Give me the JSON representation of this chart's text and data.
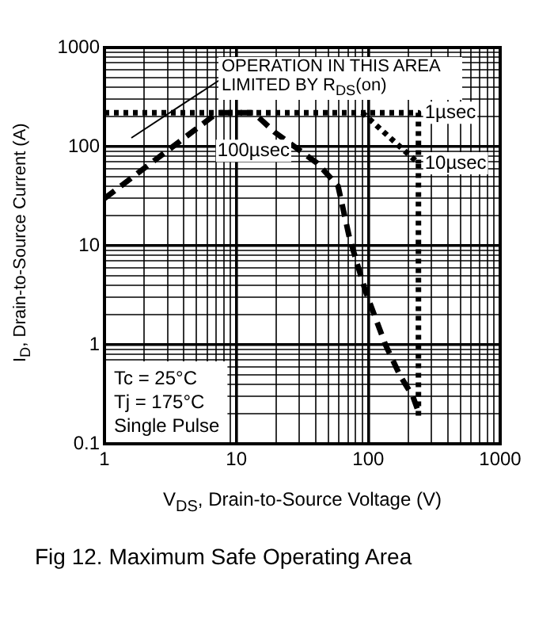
{
  "chart_data": {
    "type": "line",
    "title": "Fig 12.  Maximum Safe Operating Area",
    "xlabel": "V$_{DS}$, Drain-to-Source Voltage (V)",
    "ylabel": "I$_{D}$, Drain-to-Source Current (A)",
    "annotations": [
      "OPERATION IN THIS AREA LIMITED BY R$_{DS}$(on)",
      "Tc = 25°C",
      "Tj = 175°C",
      "Single Pulse"
    ],
    "log": "xy",
    "grid": true,
    "legend": false,
    "marker": "none",
    "xlim": [
      1,
      1000
    ],
    "xticks": [
      1,
      {
        "value": 2,
        "label": null
      },
      {
        "value": 3,
        "label": null
      },
      {
        "value": 4,
        "label": null
      },
      {
        "value": 5,
        "label": null
      },
      {
        "value": 6,
        "label": null
      },
      {
        "value": 7,
        "label": null
      },
      {
        "value": 8,
        "label": null
      },
      {
        "value": 9,
        "label": null
      },
      10,
      {
        "value": 20,
        "label": null
      },
      {
        "value": 30,
        "label": null
      },
      {
        "value": 40,
        "label": null
      },
      {
        "value": 50,
        "label": null
      },
      {
        "value": 60,
        "label": null
      },
      {
        "value": 70,
        "label": null
      },
      {
        "value": 80,
        "label": null
      },
      {
        "value": 90,
        "label": null
      },
      100,
      {
        "value": 200,
        "label": null
      },
      {
        "value": 300,
        "label": null
      },
      {
        "value": 400,
        "label": null
      },
      {
        "value": 500,
        "label": null
      },
      {
        "value": 600,
        "label": null
      },
      {
        "value": 700,
        "label": null
      },
      {
        "value": 800,
        "label": null
      },
      {
        "value": 900,
        "label": null
      },
      1000
    ],
    "ylim": [
      0.1,
      1000
    ],
    "yticks": [
      0.1,
      {
        "value": 0.2,
        "label": null
      },
      {
        "value": 0.3,
        "label": null
      },
      {
        "value": 0.4,
        "label": null
      },
      {
        "value": 0.5,
        "label": null
      },
      {
        "value": 0.6,
        "label": null
      },
      {
        "value": 0.7,
        "label": null
      },
      {
        "value": 0.8,
        "label": null
      },
      {
        "value": 0.9,
        "label": null
      },
      1,
      {
        "value": 2,
        "label": null
      },
      {
        "value": 3,
        "label": null
      },
      {
        "value": 4,
        "label": null
      },
      {
        "value": 5,
        "label": null
      },
      {
        "value": 6,
        "label": null
      },
      {
        "value": 7,
        "label": null
      },
      {
        "value": 8,
        "label": null
      },
      {
        "value": 9,
        "label": null
      },
      10,
      {
        "value": 20,
        "label": null
      },
      {
        "value": 30,
        "label": null
      },
      {
        "value": 40,
        "label": null
      },
      {
        "value": 50,
        "label": null
      },
      {
        "value": 60,
        "label": null
      },
      {
        "value": 70,
        "label": null
      },
      {
        "value": 80,
        "label": null
      },
      {
        "value": 90,
        "label": null
      },
      100,
      {
        "value": 200,
        "label": null
      },
      {
        "value": 300,
        "label": null
      },
      {
        "value": 400,
        "label": null
      },
      {
        "value": 500,
        "label": null
      },
      {
        "value": 600,
        "label": null
      },
      {
        "value": 700,
        "label": null
      },
      {
        "value": 800,
        "label": null
      },
      {
        "value": 900,
        "label": null
      },
      1000
    ],
    "series": [
      {
        "name": "1µsec",
        "color": "#000000",
        "line_style": "dotted",
        "x": [
          1,
          240,
          240
        ],
        "values": [
          220,
          220,
          68
        ]
      },
      {
        "name": "10µsec",
        "color": "#000000",
        "line_style": "dotted",
        "x": [
          90,
          240,
          240
        ],
        "values": [
          220,
          68,
          0.19
        ]
      },
      {
        "name": "100µsec",
        "color": "#000000",
        "line_style": "dashed",
        "x": [
          1,
          7.2,
          13.5,
          19.5,
          41,
          59,
          72,
          95,
          135,
          174,
          218,
          240
        ],
        "values": [
          30,
          220,
          220,
          140,
          68,
          40,
          12,
          3.5,
          1.0,
          0.49,
          0.3,
          0.21
        ]
      }
    ]
  }
}
